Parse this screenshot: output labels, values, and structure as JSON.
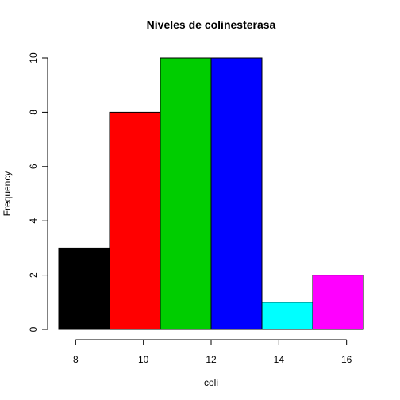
{
  "chart_data": {
    "type": "histogram",
    "title": "Niveles de colinesterasa",
    "xlabel": "coli",
    "ylabel": "Frequency",
    "bins": [
      {
        "from": 7.5,
        "to": 9.0,
        "count": 3,
        "color": "#000000"
      },
      {
        "from": 9.0,
        "to": 10.5,
        "count": 8,
        "color": "#ff0000"
      },
      {
        "from": 10.5,
        "to": 12.0,
        "count": 10,
        "color": "#00cd00"
      },
      {
        "from": 12.0,
        "to": 13.5,
        "count": 10,
        "color": "#0000ff"
      },
      {
        "from": 13.5,
        "to": 15.0,
        "count": 1,
        "color": "#00ffff"
      },
      {
        "from": 15.0,
        "to": 16.5,
        "count": 2,
        "color": "#ff00ff"
      }
    ],
    "xticks": [
      8,
      10,
      12,
      14,
      16
    ],
    "yticks": [
      0,
      2,
      4,
      6,
      8,
      10
    ],
    "xlim": [
      7.5,
      16.5
    ],
    "ylim": [
      0,
      10
    ],
    "grid": false,
    "legend": "none"
  }
}
